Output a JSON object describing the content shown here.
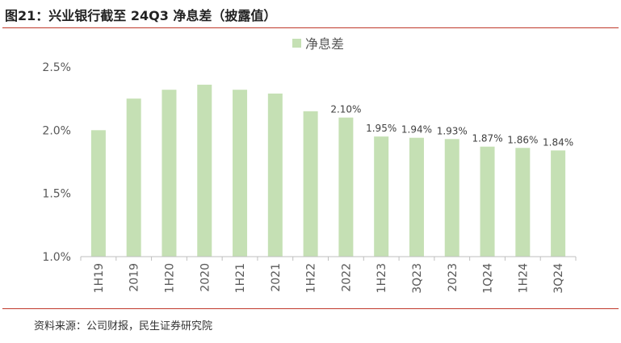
{
  "figure": {
    "title": "图21：兴业银行截至 24Q3 净息差（披露值）",
    "source": "资料来源：公司财报，民生证券研究院"
  },
  "colors": {
    "bar": "#c5e0b4",
    "rule": "#c0392b",
    "axis": "#bfbfbf",
    "text": "#595959"
  },
  "chart_data": {
    "type": "bar",
    "legend": {
      "position": "top-center",
      "entries": [
        "净息差"
      ]
    },
    "categories": [
      "1H19",
      "2019",
      "1H20",
      "2020",
      "1H21",
      "2021",
      "1H22",
      "2022",
      "1H23",
      "3Q23",
      "2023",
      "1Q24",
      "1H24",
      "3Q24"
    ],
    "series": [
      {
        "name": "净息差",
        "values": [
          2.0,
          2.25,
          2.32,
          2.36,
          2.32,
          2.29,
          2.15,
          2.1,
          1.95,
          1.94,
          1.93,
          1.87,
          1.86,
          1.84
        ],
        "data_labels": [
          "",
          "",
          "",
          "",
          "",
          "",
          "",
          "2.10%",
          "1.95%",
          "1.94%",
          "1.93%",
          "1.87%",
          "1.86%",
          "1.84%"
        ]
      }
    ],
    "ylim": [
      1.0,
      2.5
    ],
    "yticks": [
      1.0,
      1.5,
      2.0,
      2.5
    ],
    "ytick_labels": [
      "1.0%",
      "1.5%",
      "2.0%",
      "2.5%"
    ],
    "grid": false,
    "xlabel": "",
    "ylabel": ""
  }
}
